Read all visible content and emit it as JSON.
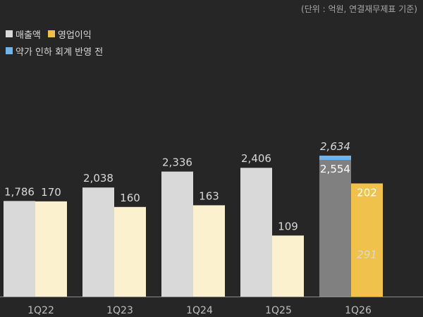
{
  "unit_note": "(단위 : 억원, 연결재무제표 기준)",
  "legend": [
    {
      "label": "매출액",
      "color": "#d9d9d9"
    },
    {
      "label": "영업이익",
      "color": "#f0c24b"
    },
    {
      "label": "약가 인하 회계 반영 전",
      "color": "#6fb4ea"
    }
  ],
  "chart_data": {
    "type": "bar",
    "categories": [
      "1Q22",
      "1Q23",
      "1Q24",
      "1Q25",
      "1Q26"
    ],
    "series": [
      {
        "name": "매출액",
        "values": [
          1786,
          2038,
          2336,
          2406,
          2554
        ],
        "labels": [
          "1,786",
          "2,038",
          "2,336",
          "2,406",
          "2,554"
        ]
      },
      {
        "name": "영업이익",
        "values": [
          170,
          160,
          163,
          109,
          202
        ],
        "labels": [
          "170",
          "160",
          "163",
          "109",
          "202"
        ]
      }
    ],
    "pre_adjustment": {
      "name": "약가 인하 회계 반영 전",
      "category": "1Q26",
      "revenue": 2634,
      "revenue_label": "2,634",
      "operating_profit": 291,
      "operating_profit_label": "291"
    },
    "colors": {
      "revenue": "#d9d9d9",
      "revenue_latest": "#808080",
      "operating_profit": "#fbf1cf",
      "operating_profit_latest": "#f0c24b",
      "pre_adjustment": "#6fb4ea",
      "value_label": "#d8d8d8",
      "value_label_in_bar": "#ffffff",
      "axis_line": "#8a8a8a"
    }
  }
}
